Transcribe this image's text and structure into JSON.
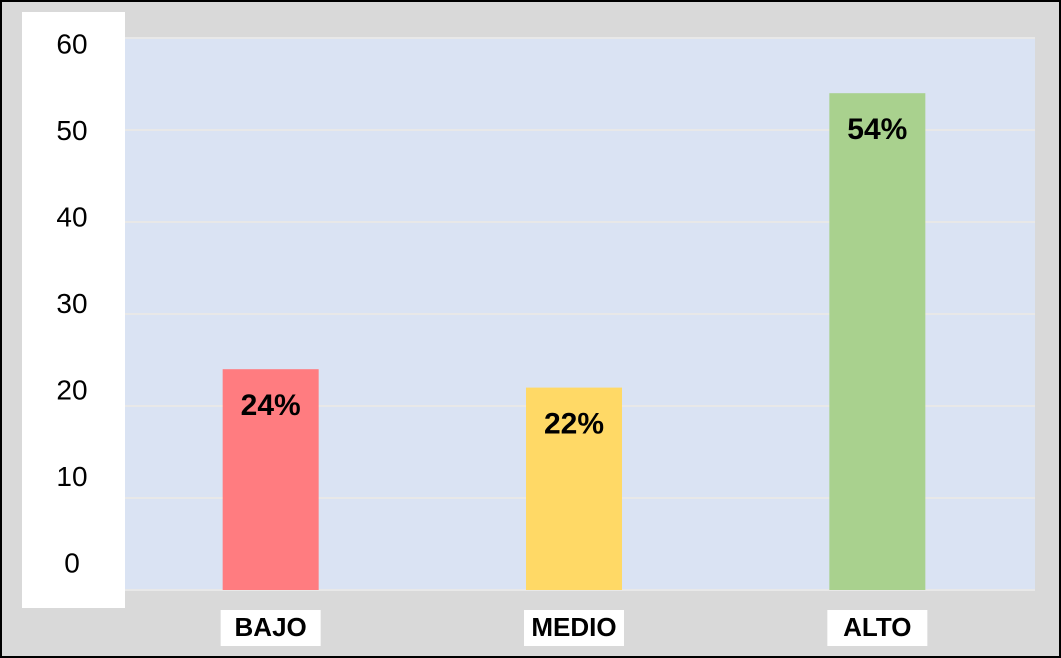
{
  "chart_data": {
    "type": "bar",
    "categories": [
      "BAJO",
      "MEDIO",
      "ALTO"
    ],
    "values": [
      24,
      22,
      54
    ],
    "value_labels": [
      "24%",
      "22%",
      "54%"
    ],
    "colors": [
      "#ff7c80",
      "#ffd966",
      "#a9d18e"
    ],
    "ylim": [
      0,
      60
    ],
    "yticks": [
      0,
      10,
      20,
      30,
      40,
      50,
      60
    ],
    "grid": true
  }
}
